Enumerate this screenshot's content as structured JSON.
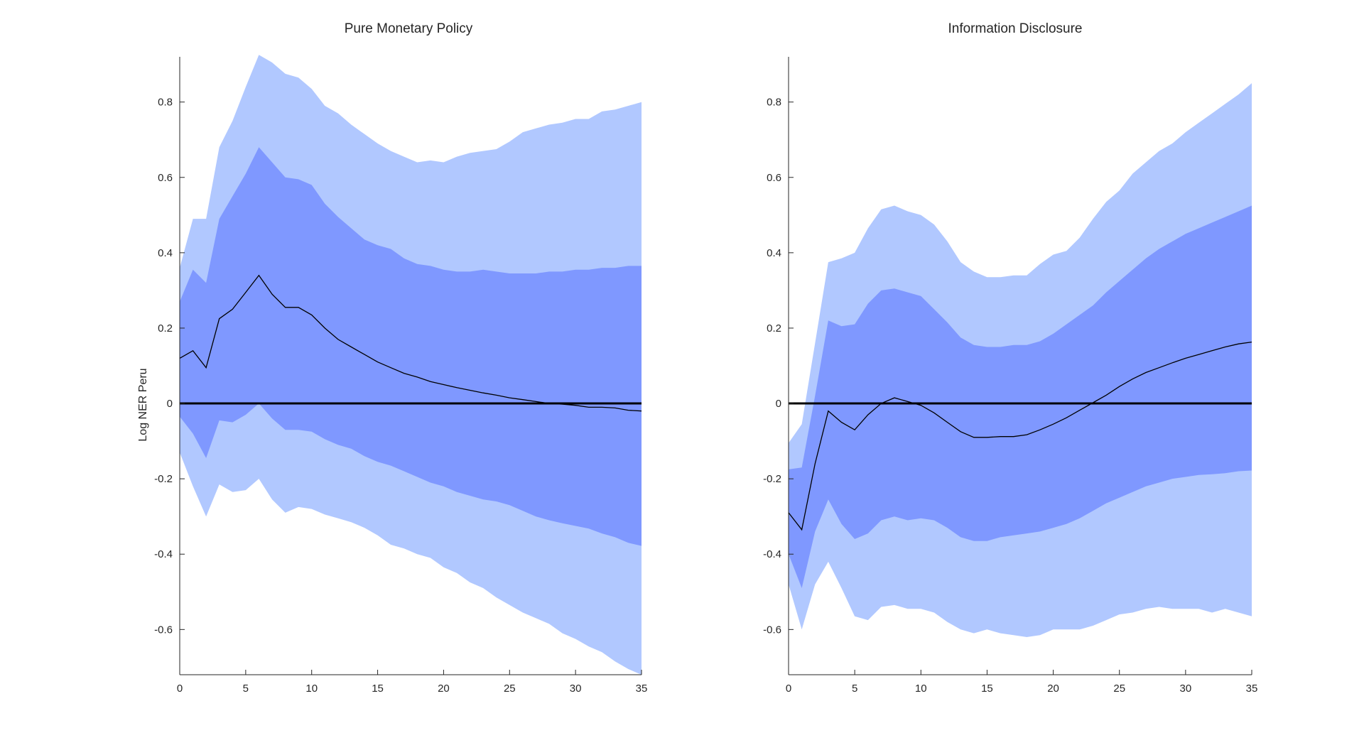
{
  "colors": {
    "outer_band": "#b1c8ff",
    "inner_band": "#7f98ff",
    "median": "#000000",
    "zero_line": "#000000",
    "axis": "#262626"
  },
  "chart_data": [
    {
      "type": "area",
      "title": "Pure Monetary Policy",
      "xlabel": "",
      "ylabel": "Log NER Peru",
      "xlim": [
        0,
        35
      ],
      "ylim": [
        -0.72,
        0.92
      ],
      "xticks": [
        0,
        5,
        10,
        15,
        20,
        25,
        30,
        35
      ],
      "yticks": [
        -0.6,
        -0.4,
        -0.2,
        0,
        0.2,
        0.4,
        0.6,
        0.8
      ],
      "x": [
        0,
        1,
        2,
        3,
        4,
        5,
        6,
        7,
        8,
        9,
        10,
        11,
        12,
        13,
        14,
        15,
        16,
        17,
        18,
        19,
        20,
        21,
        22,
        23,
        24,
        25,
        26,
        27,
        28,
        29,
        30,
        31,
        32,
        33,
        34,
        35
      ],
      "series": [
        {
          "name": "outer_upper",
          "values": [
            0.36,
            0.49,
            0.49,
            0.68,
            0.75,
            0.84,
            0.925,
            0.905,
            0.875,
            0.865,
            0.835,
            0.79,
            0.77,
            0.74,
            0.715,
            0.69,
            0.67,
            0.655,
            0.64,
            0.645,
            0.64,
            0.655,
            0.665,
            0.67,
            0.675,
            0.695,
            0.72,
            0.73,
            0.74,
            0.745,
            0.755,
            0.755,
            0.775,
            0.78,
            0.79,
            0.8
          ]
        },
        {
          "name": "inner_upper",
          "values": [
            0.27,
            0.355,
            0.32,
            0.49,
            0.55,
            0.61,
            0.68,
            0.64,
            0.6,
            0.595,
            0.58,
            0.53,
            0.495,
            0.465,
            0.435,
            0.42,
            0.41,
            0.385,
            0.37,
            0.365,
            0.355,
            0.35,
            0.35,
            0.355,
            0.35,
            0.345,
            0.345,
            0.345,
            0.35,
            0.35,
            0.355,
            0.355,
            0.36,
            0.36,
            0.365,
            0.365
          ]
        },
        {
          "name": "median",
          "values": [
            0.12,
            0.14,
            0.095,
            0.225,
            0.25,
            0.295,
            0.34,
            0.29,
            0.255,
            0.255,
            0.235,
            0.2,
            0.17,
            0.15,
            0.13,
            0.11,
            0.095,
            0.08,
            0.07,
            0.058,
            0.05,
            0.042,
            0.035,
            0.028,
            0.022,
            0.015,
            0.01,
            0.005,
            0.0,
            -0.002,
            -0.005,
            -0.01,
            -0.01,
            -0.012,
            -0.018,
            -0.02
          ]
        },
        {
          "name": "inner_lower",
          "values": [
            -0.035,
            -0.08,
            -0.145,
            -0.045,
            -0.05,
            -0.03,
            0.0,
            -0.04,
            -0.07,
            -0.07,
            -0.075,
            -0.095,
            -0.11,
            -0.12,
            -0.14,
            -0.155,
            -0.165,
            -0.18,
            -0.195,
            -0.21,
            -0.22,
            -0.235,
            -0.245,
            -0.255,
            -0.26,
            -0.27,
            -0.285,
            -0.3,
            -0.31,
            -0.318,
            -0.325,
            -0.332,
            -0.345,
            -0.355,
            -0.37,
            -0.378
          ]
        },
        {
          "name": "outer_lower",
          "values": [
            -0.13,
            -0.22,
            -0.3,
            -0.215,
            -0.235,
            -0.23,
            -0.2,
            -0.255,
            -0.29,
            -0.275,
            -0.28,
            -0.295,
            -0.305,
            -0.315,
            -0.33,
            -0.35,
            -0.375,
            -0.385,
            -0.4,
            -0.41,
            -0.435,
            -0.45,
            -0.475,
            -0.49,
            -0.515,
            -0.535,
            -0.555,
            -0.57,
            -0.585,
            -0.61,
            -0.625,
            -0.645,
            -0.66,
            -0.685,
            -0.705,
            -0.72
          ]
        }
      ]
    },
    {
      "type": "area",
      "title": "Information Disclosure",
      "xlabel": "",
      "ylabel": "",
      "xlim": [
        0,
        35
      ],
      "ylim": [
        -0.72,
        0.92
      ],
      "xticks": [
        0,
        5,
        10,
        15,
        20,
        25,
        30,
        35
      ],
      "yticks": [
        -0.6,
        -0.4,
        -0.2,
        0,
        0.2,
        0.4,
        0.6,
        0.8
      ],
      "x": [
        0,
        1,
        2,
        3,
        4,
        5,
        6,
        7,
        8,
        9,
        10,
        11,
        12,
        13,
        14,
        15,
        16,
        17,
        18,
        19,
        20,
        21,
        22,
        23,
        24,
        25,
        26,
        27,
        28,
        29,
        30,
        31,
        32,
        33,
        34,
        35
      ],
      "series": [
        {
          "name": "outer_upper",
          "values": [
            -0.105,
            -0.055,
            0.16,
            0.375,
            0.385,
            0.4,
            0.465,
            0.515,
            0.525,
            0.51,
            0.5,
            0.475,
            0.43,
            0.375,
            0.35,
            0.335,
            0.335,
            0.34,
            0.34,
            0.37,
            0.395,
            0.405,
            0.44,
            0.49,
            0.535,
            0.565,
            0.61,
            0.64,
            0.67,
            0.69,
            0.72,
            0.745,
            0.77,
            0.795,
            0.82,
            0.85
          ]
        },
        {
          "name": "inner_upper",
          "values": [
            -0.175,
            -0.17,
            0.02,
            0.22,
            0.205,
            0.21,
            0.265,
            0.3,
            0.305,
            0.295,
            0.285,
            0.25,
            0.215,
            0.175,
            0.155,
            0.15,
            0.15,
            0.155,
            0.155,
            0.165,
            0.185,
            0.21,
            0.235,
            0.26,
            0.295,
            0.325,
            0.355,
            0.385,
            0.41,
            0.43,
            0.45,
            0.465,
            0.48,
            0.495,
            0.51,
            0.525
          ]
        },
        {
          "name": "median",
          "values": [
            -0.29,
            -0.335,
            -0.16,
            -0.02,
            -0.05,
            -0.07,
            -0.03,
            0.0,
            0.015,
            0.005,
            -0.005,
            -0.025,
            -0.05,
            -0.075,
            -0.09,
            -0.09,
            -0.088,
            -0.088,
            -0.083,
            -0.07,
            -0.055,
            -0.038,
            -0.018,
            0.002,
            0.022,
            0.045,
            0.065,
            0.082,
            0.095,
            0.108,
            0.12,
            0.13,
            0.14,
            0.15,
            0.158,
            0.163
          ]
        },
        {
          "name": "inner_lower",
          "values": [
            -0.4,
            -0.49,
            -0.34,
            -0.255,
            -0.32,
            -0.36,
            -0.345,
            -0.31,
            -0.3,
            -0.31,
            -0.305,
            -0.31,
            -0.33,
            -0.355,
            -0.365,
            -0.365,
            -0.355,
            -0.35,
            -0.345,
            -0.34,
            -0.33,
            -0.32,
            -0.305,
            -0.285,
            -0.265,
            -0.25,
            -0.235,
            -0.22,
            -0.21,
            -0.2,
            -0.195,
            -0.19,
            -0.188,
            -0.185,
            -0.18,
            -0.178
          ]
        },
        {
          "name": "outer_lower",
          "values": [
            -0.48,
            -0.6,
            -0.48,
            -0.42,
            -0.49,
            -0.565,
            -0.575,
            -0.54,
            -0.535,
            -0.545,
            -0.545,
            -0.555,
            -0.58,
            -0.6,
            -0.61,
            -0.6,
            -0.61,
            -0.615,
            -0.62,
            -0.615,
            -0.6,
            -0.6,
            -0.6,
            -0.59,
            -0.575,
            -0.56,
            -0.555,
            -0.545,
            -0.54,
            -0.545,
            -0.545,
            -0.545,
            -0.555,
            -0.545,
            -0.555,
            -0.565
          ]
        }
      ]
    }
  ]
}
